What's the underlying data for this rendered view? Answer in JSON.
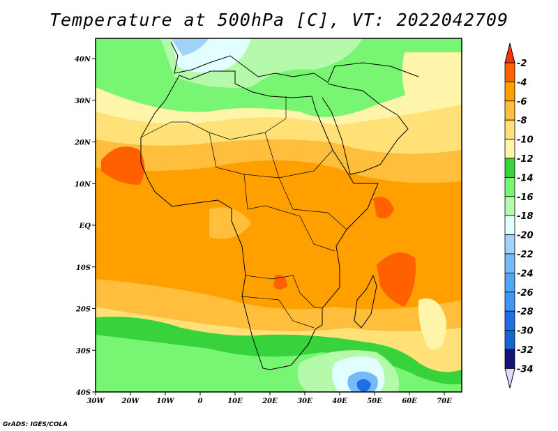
{
  "title": "Temperature at 500hPa [C], VT: 2022042709",
  "credit": "GrADS: IGES/COLA",
  "map": {
    "lon_range": [
      -30,
      75
    ],
    "lat_range": [
      -40,
      45
    ],
    "lat_labels": [
      "40N",
      "30N",
      "20N",
      "10N",
      "EQ",
      "10S",
      "20S",
      "30S",
      "40S"
    ],
    "lat_values": [
      40,
      30,
      20,
      10,
      0,
      -10,
      -20,
      -30,
      -40
    ],
    "lon_labels": [
      "30W",
      "20W",
      "10W",
      "0",
      "10E",
      "20E",
      "30E",
      "40E",
      "50E",
      "60E",
      "70E"
    ],
    "lon_values": [
      -30,
      -20,
      -10,
      0,
      10,
      20,
      30,
      40,
      50,
      60,
      70
    ]
  },
  "colorbar": {
    "labels": [
      "-2",
      "-4",
      "-6",
      "-8",
      "-10",
      "-12",
      "-14",
      "-16",
      "-18",
      "-20",
      "-22",
      "-24",
      "-26",
      "-28",
      "-30",
      "-32",
      "-34"
    ],
    "top_triangle_color": "#ff3200",
    "bottom_triangle_color": "#dcdcff",
    "colors": [
      "#ff6000",
      "#ffa000",
      "#ffbe3c",
      "#ffe178",
      "#fff5aa",
      "#37d23c",
      "#78f573",
      "#b4faaa",
      "#e1ffff",
      "#a0d2fa",
      "#78b9fa",
      "#50a5f5",
      "#3c97f5",
      "#1e6ee6",
      "#1464d2",
      "#141478"
    ]
  }
}
